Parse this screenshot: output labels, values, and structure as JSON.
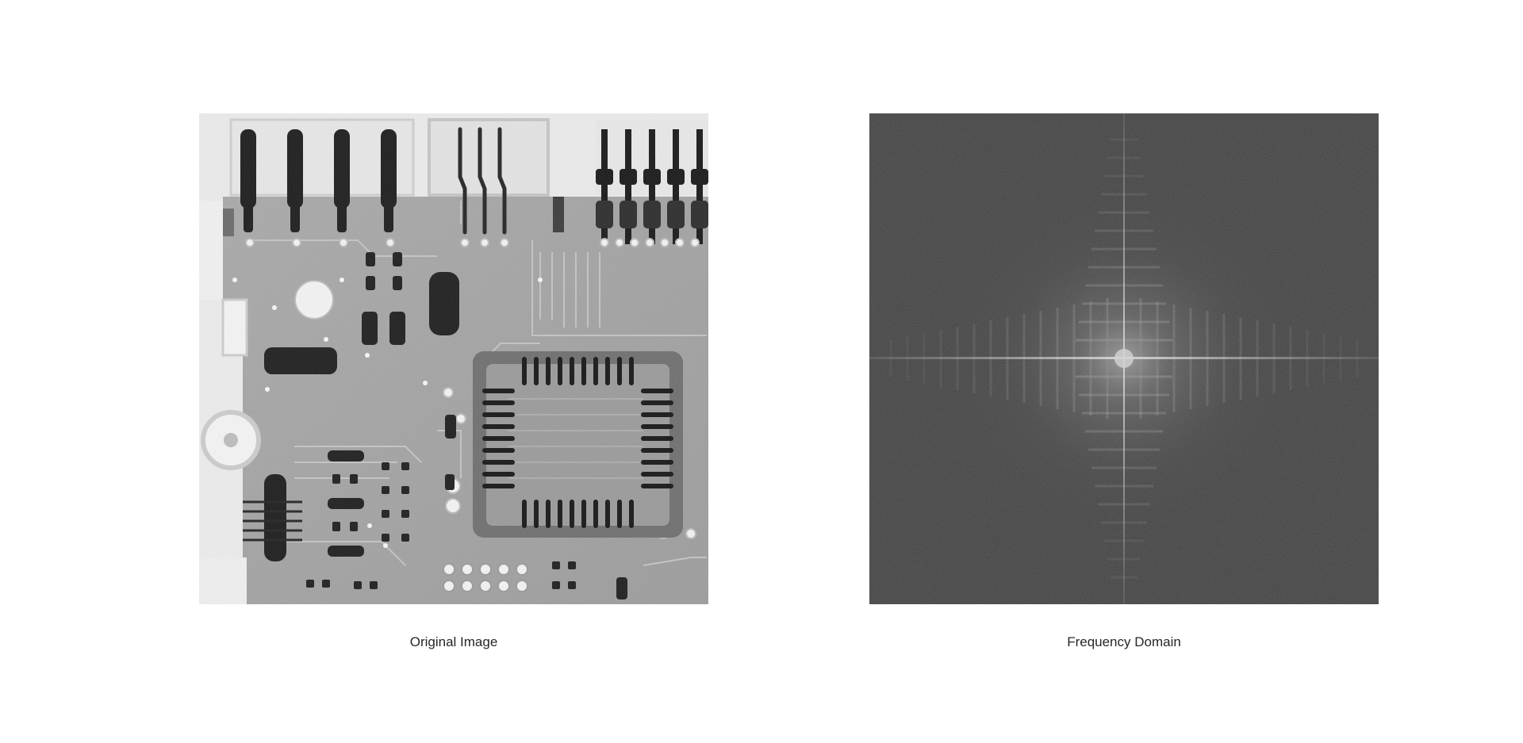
{
  "figure": {
    "left_panel": {
      "caption": "Original Image",
      "content": "x-ray-circuit-board"
    },
    "right_panel": {
      "caption": "Frequency Domain",
      "content": "fft-magnitude-spectrum"
    },
    "colors": {
      "background": "#ffffff",
      "caption_text": "#262626",
      "spectrum_base": "#3a3a3a"
    }
  }
}
